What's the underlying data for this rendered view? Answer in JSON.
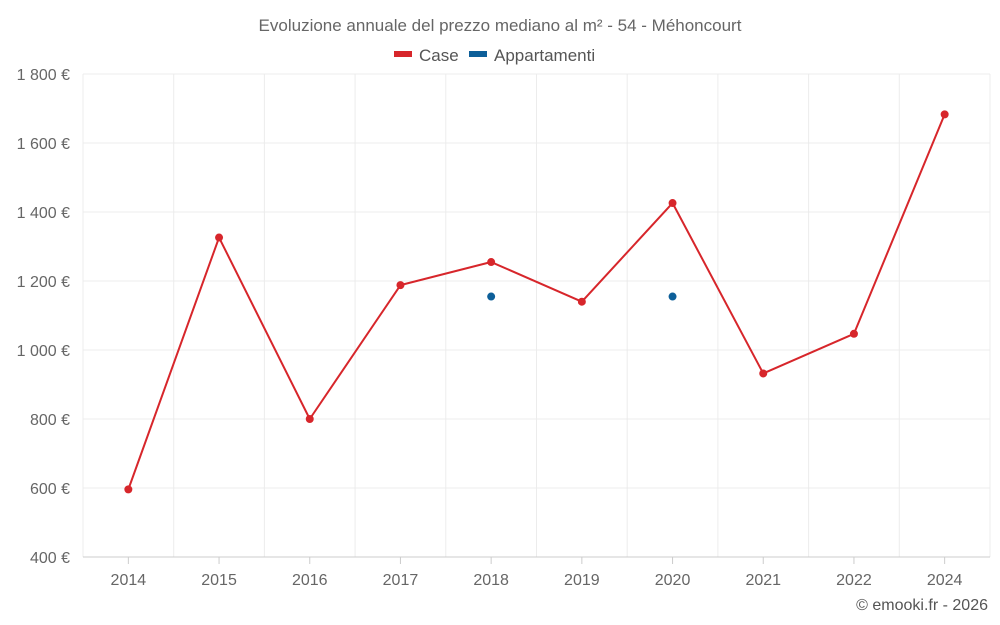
{
  "chart_data": {
    "type": "line",
    "title": "Evoluzione annuale del prezzo mediano al m² - 54 - Méhoncourt",
    "xlabel": "",
    "ylabel": "",
    "categories": [
      "2014",
      "2015",
      "2016",
      "2017",
      "2018",
      "2019",
      "2020",
      "2021",
      "2022",
      "2024"
    ],
    "ylim": [
      400,
      1800
    ],
    "yticks": [
      400,
      600,
      800,
      1000,
      1200,
      1400,
      1600,
      1800
    ],
    "ytick_labels": [
      "400 €",
      "600 €",
      "800 €",
      "1 000 €",
      "1 200 €",
      "1 400 €",
      "1 600 €",
      "1 800 €"
    ],
    "grid": true,
    "legend_position": "top-center",
    "series": [
      {
        "name": "Case",
        "color": "#d7262b",
        "values": [
          596,
          1326,
          800,
          1188,
          1255,
          1140,
          1426,
          932,
          1047,
          1683
        ]
      },
      {
        "name": "Appartamenti",
        "color": "#0d5f99",
        "values": [
          null,
          null,
          null,
          null,
          1155,
          null,
          1155,
          null,
          null,
          null
        ]
      }
    ]
  },
  "credit": "© emooki.fr - 2026"
}
